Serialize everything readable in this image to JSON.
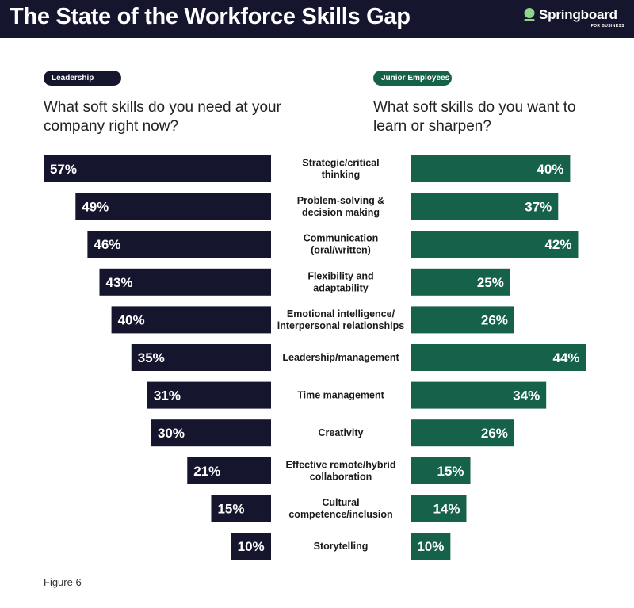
{
  "header": {
    "title": "The State of the Workforce Skills Gap",
    "logo_text": "Springboard",
    "logo_subtext": "FOR BUSINESS"
  },
  "left_panel": {
    "tag": "Leadership",
    "question": "What soft skills do you need at your company right now?"
  },
  "right_panel": {
    "tag": "Junior Employees",
    "question": "What soft skills do you want to learn or sharpen?"
  },
  "footer": {
    "figure_label": "Figure 6"
  },
  "colors": {
    "navy": "#15162e",
    "green": "#15614a",
    "text": "#222222"
  },
  "chart_data": {
    "type": "bar",
    "orientation": "horizontal",
    "layout": "back-to-back",
    "categories": [
      [
        "Strategic/critical",
        "thinking"
      ],
      [
        "Problem-solving &",
        "decision making"
      ],
      [
        "Communication",
        "(oral/written)"
      ],
      [
        "Flexibility and",
        "adaptability"
      ],
      [
        "Emotional intelligence/",
        "interpersonal relationships"
      ],
      [
        "Leadership/management"
      ],
      [
        "Time management"
      ],
      [
        "Creativity"
      ],
      [
        "Effective remote/hybrid",
        "collaboration"
      ],
      [
        "Cultural",
        "competence/inclusion"
      ],
      [
        "Storytelling"
      ]
    ],
    "series": [
      {
        "name": "Leadership",
        "values": [
          57,
          49,
          46,
          43,
          40,
          35,
          31,
          30,
          21,
          15,
          10
        ],
        "labels": [
          "57%",
          "49%",
          "46%",
          "43%",
          "40%",
          "35%",
          "31%",
          "30%",
          "21%",
          "15%",
          "10%"
        ]
      },
      {
        "name": "Junior Employees",
        "values": [
          40,
          37,
          42,
          25,
          26,
          44,
          34,
          26,
          15,
          14,
          10
        ],
        "labels": [
          "40%",
          "37%",
          "42%",
          "25%",
          "26%",
          "44%",
          "34%",
          "26%",
          "15%",
          "14%",
          "10%"
        ]
      }
    ],
    "xlim": [
      0,
      57
    ],
    "grid": false,
    "legend": "top"
  }
}
